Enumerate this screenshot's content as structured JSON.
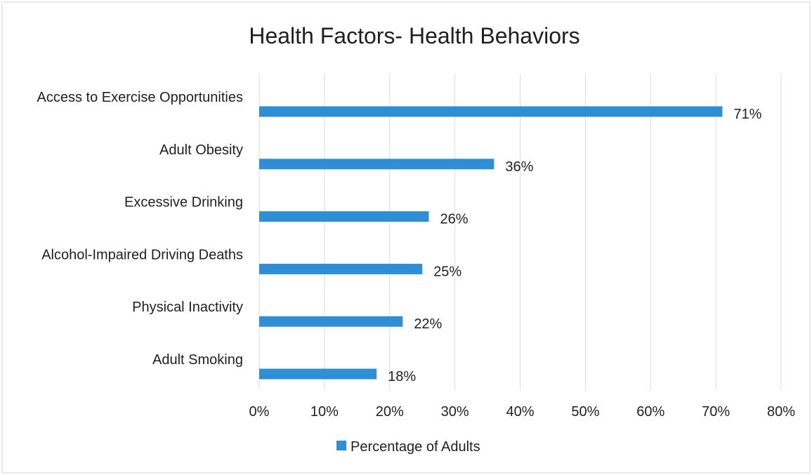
{
  "chart_data": {
    "type": "bar",
    "orientation": "horizontal",
    "title": "Health Factors- Health Behaviors",
    "categories": [
      "Access to Exercise Opportunities",
      "Adult Obesity",
      "Excessive Drinking",
      "Alcohol-Impaired Driving Deaths",
      "Physical Inactivity",
      "Adult Smoking"
    ],
    "series": [
      {
        "name": "Percentage of Adults",
        "values": [
          71,
          36,
          26,
          25,
          22,
          18
        ],
        "data_labels": [
          "71%",
          "36%",
          "26%",
          "25%",
          "22%",
          "18%"
        ],
        "color": "#2e8fd6"
      }
    ],
    "xlim": [
      0,
      80
    ],
    "x_ticks": [
      0,
      10,
      20,
      30,
      40,
      50,
      60,
      70,
      80
    ],
    "x_tick_labels": [
      "0%",
      "10%",
      "20%",
      "30%",
      "40%",
      "50%",
      "60%",
      "70%",
      "80%"
    ],
    "grid": true,
    "legend": "bottom"
  }
}
